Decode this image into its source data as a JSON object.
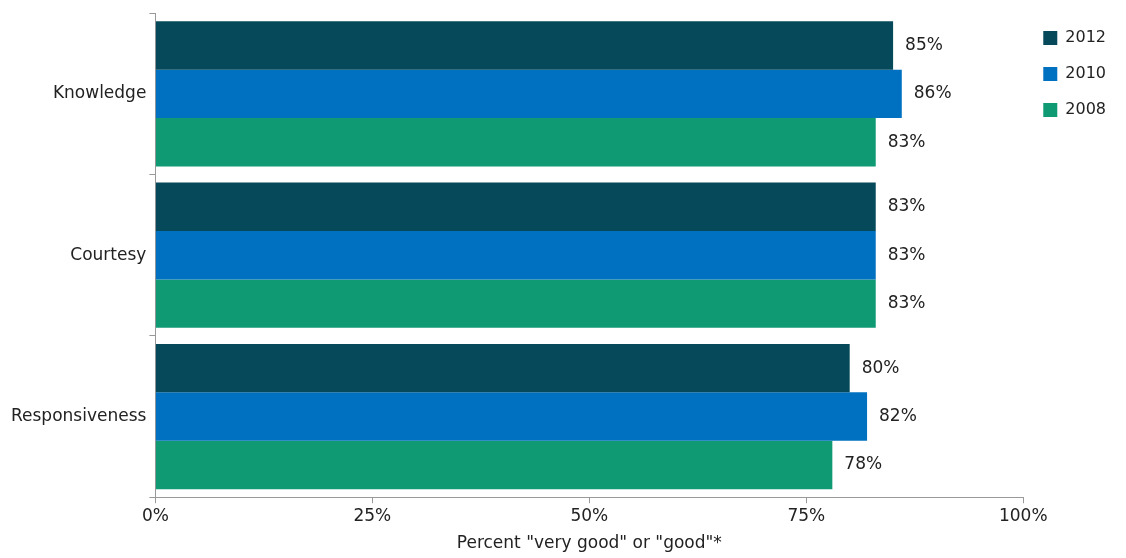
{
  "chart_data": {
    "type": "bar",
    "orientation": "horizontal",
    "xlabel": "Percent \"very good\" or \"good\"*",
    "categories": [
      "Knowledge",
      "Courtesy",
      "Responsiveness"
    ],
    "series": [
      {
        "name": "2012",
        "color": "#06495a",
        "values": [
          85,
          83,
          80
        ],
        "value_labels": [
          "85%",
          "83%",
          "80%"
        ]
      },
      {
        "name": "2010",
        "color": "#0070c0",
        "values": [
          86,
          83,
          82
        ],
        "value_labels": [
          "86%",
          "83%",
          "82%"
        ]
      },
      {
        "name": "2008",
        "color": "#109a73",
        "values": [
          83,
          83,
          78
        ],
        "value_labels": [
          "83%",
          "83%",
          "78%"
        ]
      }
    ],
    "xlim": [
      0,
      100
    ],
    "xticks": [
      {
        "value": 0,
        "label": "0%"
      },
      {
        "value": 25,
        "label": "25%"
      },
      {
        "value": 50,
        "label": "50%"
      },
      {
        "value": 75,
        "label": "75%"
      },
      {
        "value": 100,
        "label": "100%"
      }
    ],
    "legend": "right"
  }
}
